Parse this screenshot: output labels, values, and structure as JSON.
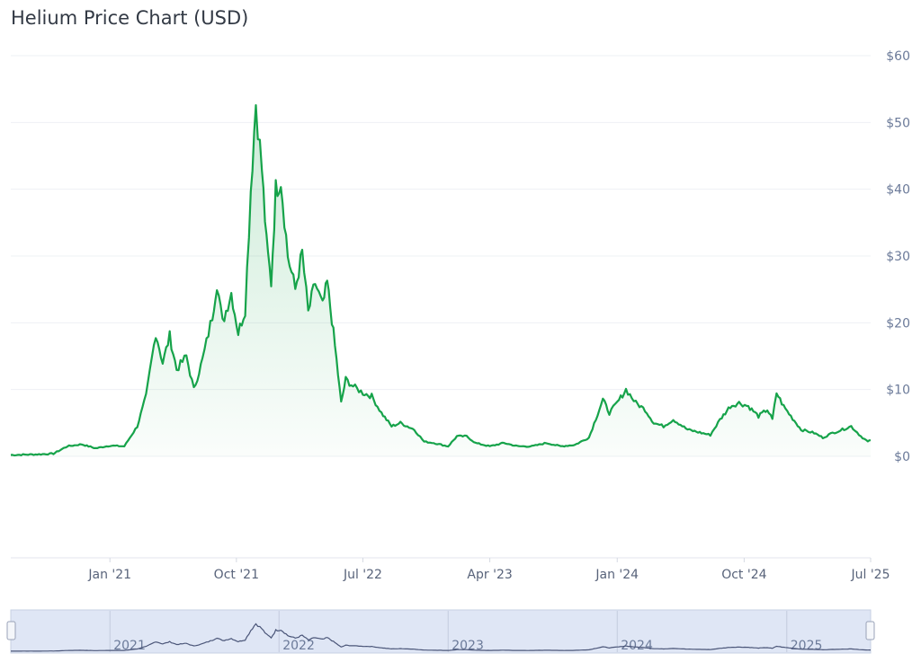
{
  "chart_data": {
    "type": "area",
    "title": "Helium Price Chart (USD)",
    "ylabel": "",
    "xlabel": "",
    "currency_prefix": "$",
    "ylim": [
      0,
      60
    ],
    "y_ticks": [
      0,
      10,
      20,
      30,
      40,
      50,
      60
    ],
    "y_tick_labels": [
      "$0",
      "$10",
      "$20",
      "$30",
      "$40",
      "$50",
      "$60"
    ],
    "x_range": [
      "2020-06-01",
      "2025-07-01"
    ],
    "x_ticks": [
      {
        "date": "2021-01-01",
        "label": "Jan '21"
      },
      {
        "date": "2021-10-01",
        "label": "Oct '21"
      },
      {
        "date": "2022-07-01",
        "label": "Jul '22"
      },
      {
        "date": "2023-04-01",
        "label": "Apr '23"
      },
      {
        "date": "2024-01-01",
        "label": "Jan '24"
      },
      {
        "date": "2024-10-01",
        "label": "Oct '24"
      },
      {
        "date": "2025-07-01",
        "label": "Jul '25"
      }
    ],
    "grid": true,
    "line_color": "#16a34a",
    "fill_color": "#16a34a",
    "series": [
      {
        "name": "",
        "points": [
          [
            "2020-06-01",
            0.2
          ],
          [
            "2020-07-01",
            0.25
          ],
          [
            "2020-08-01",
            0.3
          ],
          [
            "2020-09-01",
            0.4
          ],
          [
            "2020-10-01",
            1.5
          ],
          [
            "2020-11-01",
            1.8
          ],
          [
            "2020-12-01",
            1.2
          ],
          [
            "2021-01-01",
            1.6
          ],
          [
            "2021-02-01",
            1.5
          ],
          [
            "2021-03-01",
            4.5
          ],
          [
            "2021-03-20",
            9.0
          ],
          [
            "2021-04-10",
            18.5
          ],
          [
            "2021-04-25",
            14.0
          ],
          [
            "2021-05-10",
            18.0
          ],
          [
            "2021-05-25",
            13.0
          ],
          [
            "2021-06-15",
            15.0
          ],
          [
            "2021-07-01",
            10.0
          ],
          [
            "2021-07-20",
            14.5
          ],
          [
            "2021-08-10",
            21.0
          ],
          [
            "2021-08-20",
            26.0
          ],
          [
            "2021-09-01",
            20.0
          ],
          [
            "2021-09-20",
            24.5
          ],
          [
            "2021-10-05",
            18.5
          ],
          [
            "2021-10-20",
            22.0
          ],
          [
            "2021-11-01",
            40.0
          ],
          [
            "2021-11-12",
            53.0
          ],
          [
            "2021-11-25",
            43.0
          ],
          [
            "2021-12-05",
            32.0
          ],
          [
            "2021-12-15",
            26.0
          ],
          [
            "2021-12-25",
            40.0
          ],
          [
            "2022-01-05",
            41.5
          ],
          [
            "2022-01-20",
            30.0
          ],
          [
            "2022-02-05",
            25.0
          ],
          [
            "2022-02-20",
            30.5
          ],
          [
            "2022-03-05",
            21.5
          ],
          [
            "2022-03-20",
            26.0
          ],
          [
            "2022-04-05",
            22.5
          ],
          [
            "2022-04-15",
            26.0
          ],
          [
            "2022-04-25",
            20.5
          ],
          [
            "2022-05-05",
            14.5
          ],
          [
            "2022-05-15",
            8.0
          ],
          [
            "2022-05-25",
            11.5
          ],
          [
            "2022-06-10",
            10.5
          ],
          [
            "2022-07-01",
            9.5
          ],
          [
            "2022-07-20",
            9.0
          ],
          [
            "2022-08-10",
            6.5
          ],
          [
            "2022-09-01",
            4.5
          ],
          [
            "2022-09-20",
            5.0
          ],
          [
            "2022-10-20",
            4.0
          ],
          [
            "2022-11-10",
            2.2
          ],
          [
            "2022-12-01",
            2.0
          ],
          [
            "2023-01-01",
            1.5
          ],
          [
            "2023-01-20",
            3.0
          ],
          [
            "2023-02-10",
            3.0
          ],
          [
            "2023-03-01",
            2.0
          ],
          [
            "2023-04-01",
            1.5
          ],
          [
            "2023-05-01",
            2.0
          ],
          [
            "2023-06-01",
            1.5
          ],
          [
            "2023-07-01",
            1.5
          ],
          [
            "2023-08-01",
            2.0
          ],
          [
            "2023-09-01",
            1.5
          ],
          [
            "2023-10-01",
            1.7
          ],
          [
            "2023-11-01",
            2.8
          ],
          [
            "2023-12-01",
            8.5
          ],
          [
            "2023-12-15",
            6.5
          ],
          [
            "2024-01-01",
            8.0
          ],
          [
            "2024-01-20",
            10.0
          ],
          [
            "2024-02-10",
            8.0
          ],
          [
            "2024-03-01",
            7.0
          ],
          [
            "2024-03-20",
            5.0
          ],
          [
            "2024-04-10",
            4.5
          ],
          [
            "2024-05-01",
            5.5
          ],
          [
            "2024-06-01",
            4.0
          ],
          [
            "2024-07-01",
            3.5
          ],
          [
            "2024-07-20",
            3.2
          ],
          [
            "2024-08-10",
            5.5
          ],
          [
            "2024-09-01",
            7.5
          ],
          [
            "2024-09-20",
            8.0
          ],
          [
            "2024-10-10",
            7.5
          ],
          [
            "2024-11-01",
            6.0
          ],
          [
            "2024-11-20",
            7.0
          ],
          [
            "2024-12-01",
            5.5
          ],
          [
            "2024-12-10",
            9.5
          ],
          [
            "2024-12-25",
            7.5
          ],
          [
            "2025-01-10",
            6.0
          ],
          [
            "2025-02-01",
            4.0
          ],
          [
            "2025-03-01",
            3.5
          ],
          [
            "2025-03-20",
            2.8
          ],
          [
            "2025-04-10",
            3.5
          ],
          [
            "2025-05-01",
            4.0
          ],
          [
            "2025-05-20",
            4.5
          ],
          [
            "2025-06-10",
            3.0
          ],
          [
            "2025-06-25",
            2.2
          ],
          [
            "2025-07-01",
            2.4
          ]
        ]
      }
    ],
    "navigator": {
      "years": [
        "2021",
        "2022",
        "2023",
        "2024",
        "2025"
      ],
      "year_dates": [
        "2021-01-01",
        "2022-01-01",
        "2023-01-01",
        "2024-01-01",
        "2025-01-01"
      ]
    }
  }
}
